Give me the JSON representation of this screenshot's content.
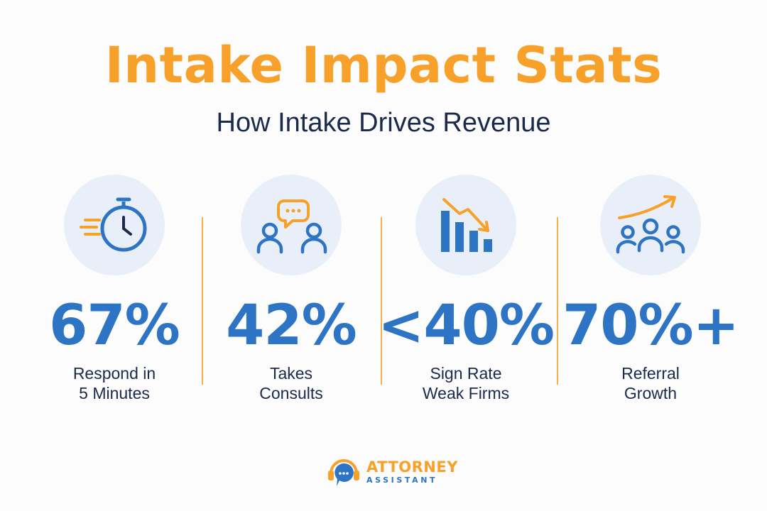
{
  "header": {
    "title": "Intake Impact Stats",
    "subtitle": "How Intake Drives Revenue"
  },
  "colors": {
    "accent_orange": "#f7a12a",
    "accent_blue": "#2d74c4",
    "text_navy": "#1b2a4a",
    "icon_bg": "#e9eff8"
  },
  "stats": [
    {
      "icon": "stopwatch-icon",
      "value": "67%",
      "label_line1": "Respond in",
      "label_line2": "5 Minutes"
    },
    {
      "icon": "people-chat-icon",
      "value": "42%",
      "label_line1": "Takes",
      "label_line2": "Consults"
    },
    {
      "icon": "declining-bar-chart-icon",
      "value": "<40%",
      "label_line1": "Sign Rate",
      "label_line2": "Weak Firms"
    },
    {
      "icon": "group-growth-icon",
      "value": "70%+",
      "label_line1": "Referral",
      "label_line2": "Growth"
    }
  ],
  "logo": {
    "icon": "headset-chat-icon",
    "line1": "ATTORNEY",
    "line2": "ASSISTANT"
  }
}
